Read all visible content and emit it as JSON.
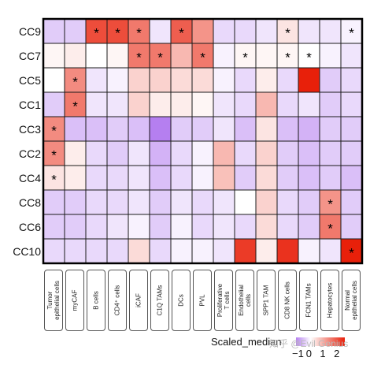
{
  "chart_data": {
    "type": "heatmap",
    "rows": [
      "CC9",
      "CC7",
      "CC5",
      "CC1",
      "CC3",
      "CC2",
      "CC4",
      "CC8",
      "CC6",
      "CC10"
    ],
    "columns": [
      [
        "Tumor",
        "epithelial cells"
      ],
      [
        "myCAF"
      ],
      [
        "B cells"
      ],
      [
        "CD4⁺ cells"
      ],
      [
        "iCAF"
      ],
      [
        "C1Q TAMs"
      ],
      [
        "DCs"
      ],
      [
        "PVL"
      ],
      [
        "Proliferative",
        "T cells"
      ],
      [
        "Endothelial",
        "cells"
      ],
      [
        "SPP1 TAM"
      ],
      [
        "CD8 NK cells"
      ],
      [
        "FCN1 TAMs"
      ],
      [
        "Hepatocytes"
      ],
      [
        "Normal",
        "epithelial cells"
      ]
    ],
    "values": [
      [
        -0.4,
        -0.4,
        2.0,
        2.0,
        1.5,
        -0.2,
        1.8,
        1.2,
        -0.3,
        -0.3,
        -0.2,
        0.3,
        -0.2,
        -0.2,
        -0.1
      ],
      [
        0.1,
        0.2,
        0.0,
        0.1,
        1.5,
        1.5,
        0.8,
        1.5,
        -0.1,
        0.1,
        0.1,
        0.1,
        0.0,
        -0.1,
        -0.2
      ],
      [
        0.0,
        1.3,
        -0.2,
        -0.1,
        0.5,
        0.5,
        0.4,
        0.4,
        -0.1,
        -0.3,
        0.2,
        -0.3,
        2.5,
        -0.4,
        -0.3
      ],
      [
        -0.4,
        1.5,
        -0.2,
        -0.2,
        0.5,
        0.2,
        0.2,
        0.1,
        -0.2,
        -0.3,
        0.8,
        -0.3,
        -0.2,
        -0.4,
        -0.3
      ],
      [
        1.3,
        -0.5,
        -0.5,
        -0.4,
        -0.5,
        -1.0,
        -0.4,
        -0.4,
        -0.2,
        -0.5,
        0.3,
        -0.5,
        -0.6,
        -0.4,
        -0.4
      ],
      [
        1.3,
        0.2,
        -0.3,
        -0.4,
        -0.2,
        -0.6,
        -0.3,
        -0.1,
        0.8,
        -0.3,
        0.5,
        -0.4,
        -0.5,
        -0.4,
        -0.4
      ],
      [
        0.3,
        0.2,
        -0.3,
        -0.3,
        -0.2,
        -0.5,
        -0.3,
        -0.1,
        0.7,
        -0.4,
        0.4,
        -0.4,
        -0.5,
        -0.4,
        -0.5
      ],
      [
        -0.4,
        -0.4,
        -0.3,
        -0.3,
        -0.2,
        -0.4,
        -0.2,
        -0.3,
        -0.2,
        0.0,
        0.5,
        -0.3,
        -0.4,
        1.2,
        -0.4
      ],
      [
        -0.4,
        -0.4,
        -0.3,
        -0.2,
        -0.1,
        -0.4,
        -0.1,
        -0.3,
        -0.2,
        -0.3,
        0.4,
        -0.3,
        -0.4,
        1.5,
        -0.4
      ],
      [
        -0.3,
        -0.3,
        -0.3,
        -0.3,
        0.4,
        -0.3,
        -0.1,
        -0.1,
        -0.2,
        2.2,
        0.2,
        2.3,
        -0.1,
        -0.2,
        2.5
      ]
    ],
    "significant": [
      [
        0,
        2
      ],
      [
        0,
        3
      ],
      [
        0,
        4
      ],
      [
        0,
        6
      ],
      [
        0,
        11
      ],
      [
        0,
        14
      ],
      [
        1,
        4
      ],
      [
        1,
        5
      ],
      [
        1,
        7
      ],
      [
        1,
        9
      ],
      [
        1,
        11
      ],
      [
        1,
        12
      ],
      [
        2,
        1
      ],
      [
        3,
        1
      ],
      [
        4,
        0
      ],
      [
        5,
        0
      ],
      [
        6,
        0
      ],
      [
        7,
        13
      ],
      [
        8,
        13
      ],
      [
        9,
        14
      ]
    ],
    "significance_mark": "*",
    "color_scale": {
      "low": "#b57ff0",
      "mid": "#ffffff",
      "high": "#e8200a",
      "domain": [
        -1,
        2.5
      ]
    },
    "legend": {
      "title": "Scaled_median",
      "ticks": [
        "−1",
        "0",
        "1",
        "2"
      ]
    },
    "grid": true
  },
  "watermark": "知乎 @Evil Genius"
}
